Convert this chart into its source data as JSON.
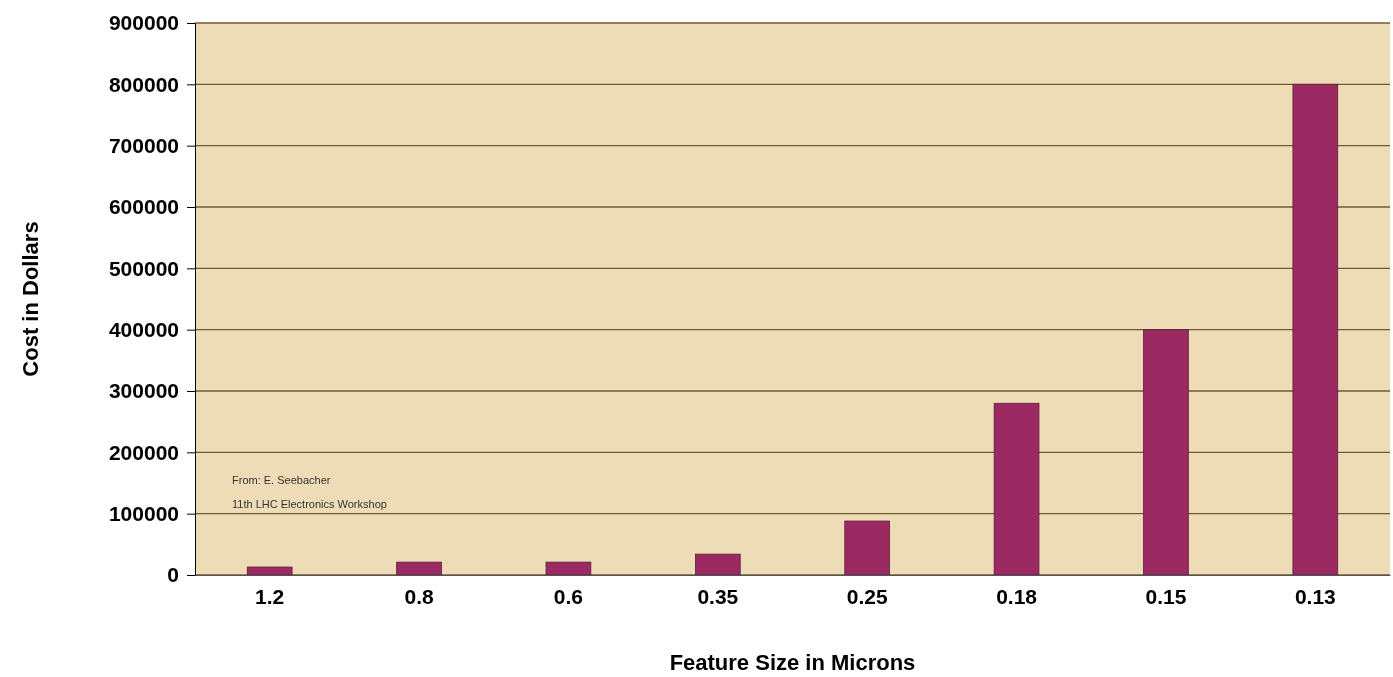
{
  "chart_data": {
    "type": "bar",
    "xlabel": "Feature Size in Microns",
    "ylabel": "Cost in Dollars",
    "categories": [
      "1.2",
      "0.8",
      "0.6",
      "0.35",
      "0.25",
      "0.18",
      "0.15",
      "0.13"
    ],
    "values": [
      13000,
      21000,
      21000,
      34000,
      88000,
      280000,
      400000,
      800000
    ],
    "color": "#9b2a62",
    "ylim": [
      0,
      900000
    ],
    "yticks": [
      0,
      100000,
      200000,
      300000,
      400000,
      500000,
      600000,
      700000,
      800000,
      900000
    ],
    "grid": "y",
    "annotations": [
      "From: E. Seebacher",
      "11th LHC Electronics Workshop"
    ]
  }
}
